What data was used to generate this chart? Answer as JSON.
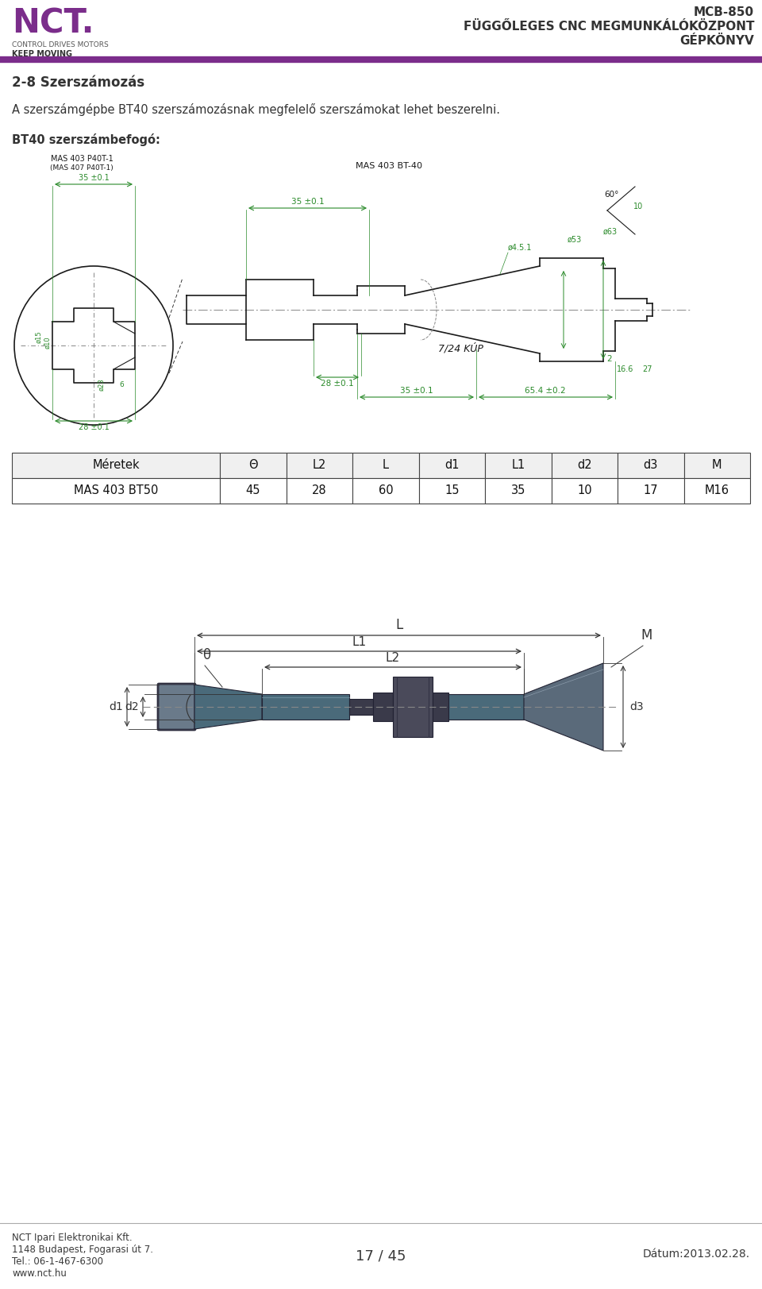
{
  "page_width": 9.6,
  "page_height": 16.23,
  "bg_color": "#ffffff",
  "header": {
    "logo_color": "#7B2D8B",
    "logo_sub1": "CONTROL DRIVES MOTORS",
    "logo_sub2": "KEEP MOVING",
    "title_line1": "MCB-850",
    "title_line2": "FÜGGŐLEGES CNC MEGMUNKÁLÓKÖZPONT",
    "title_line3": "GÉPKÖNYV",
    "separator_color": "#7B2D8B",
    "text_color": "#3a3a3a"
  },
  "section_title": "2-8 Szerszámozás",
  "paragraph": "A szerszámgépbe BT40 szerszámozásnak megfelelő szerszámokat lehet beszerelni.",
  "subsection": "BT40 szerszámbefogó:",
  "table": {
    "headers": [
      "Méretek",
      "Θ",
      "L2",
      "L",
      "d1",
      "L1",
      "d2",
      "d3",
      "M"
    ],
    "row": [
      "MAS 403 BT50",
      "45",
      "28",
      "60",
      "15",
      "35",
      "10",
      "17",
      "M16"
    ],
    "col_widths": [
      2.2,
      0.7,
      0.7,
      0.7,
      0.7,
      0.7,
      0.7,
      0.7,
      0.7
    ],
    "header_bg": "#f0f0f0",
    "row_bg": "#ffffff",
    "border_color": "#444444",
    "text_color": "#111111"
  },
  "footer": {
    "left_line1": "NCT Ipari Elektronikai Kft.",
    "left_line2": "1148 Budapest, Fogarasi út 7.",
    "left_line3": "Tel.: 06-1-467-6300",
    "left_line4": "www.nct.hu",
    "center": "17 / 45",
    "right": "Dátum:2013.02.28.",
    "text_color": "#3a3a3a"
  }
}
